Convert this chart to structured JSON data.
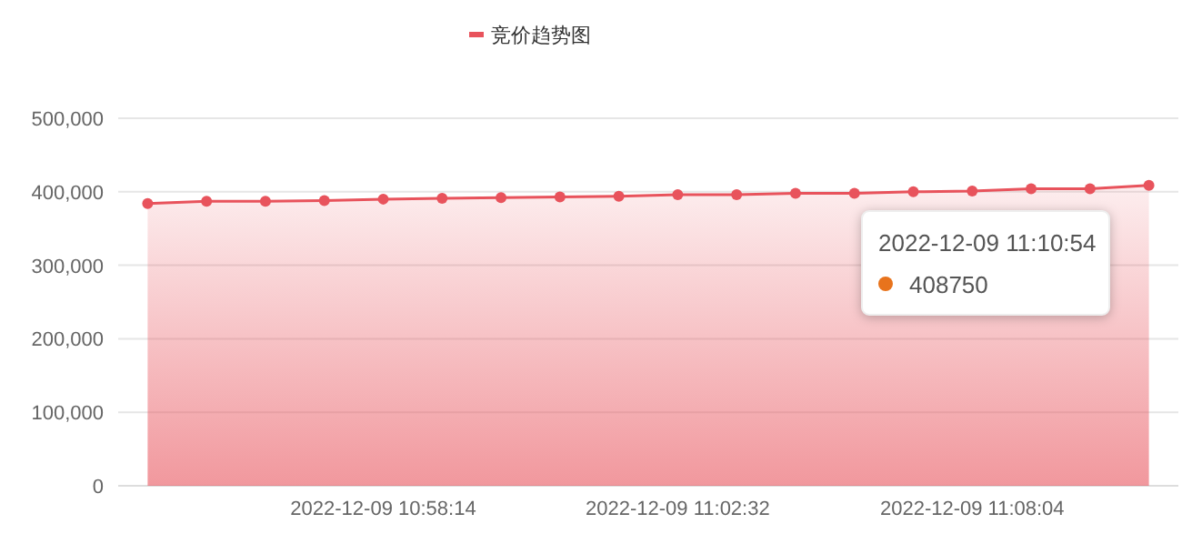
{
  "chart_data": {
    "type": "area",
    "categories": [
      null,
      null,
      null,
      null,
      "2022-12-09 10:58:14",
      null,
      null,
      null,
      null,
      "2022-12-09 11:02:32",
      null,
      null,
      null,
      null,
      "2022-12-09 11:08:04",
      null,
      null,
      null
    ],
    "series": [
      {
        "name": "竞价趋势图",
        "color": "#e8535c",
        "values": [
          384000,
          387000,
          387000,
          388000,
          390000,
          391000,
          392000,
          393000,
          394000,
          396000,
          396000,
          398000,
          398000,
          400000,
          401000,
          404000,
          404000,
          408750
        ]
      }
    ],
    "ylim": [
      0,
      500000
    ],
    "yticks": [
      {
        "value": 0,
        "label": "0"
      },
      {
        "value": 100000,
        "label": "100,000"
      },
      {
        "value": 200000,
        "label": "200,000"
      },
      {
        "value": 300000,
        "label": "300,000"
      },
      {
        "value": 400000,
        "label": "400,000"
      },
      {
        "value": 500000,
        "label": "500,000"
      }
    ],
    "grid": "y",
    "legend": "top",
    "marker": "circle",
    "annotations": [
      "2022-12-09 11:10:54",
      "408750"
    ]
  }
}
